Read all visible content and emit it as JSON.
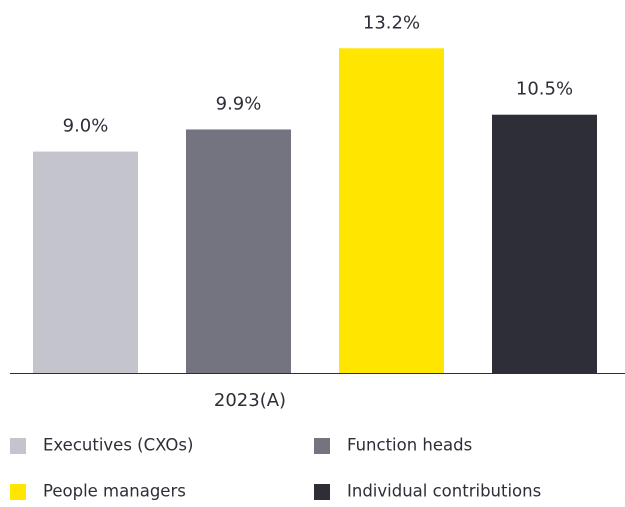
{
  "chart_data": {
    "type": "bar",
    "categories": [
      "2023(A)"
    ],
    "series": [
      {
        "name": "Executives (CXOs)",
        "color": "#c4c4cd",
        "values": [
          9.0
        ],
        "value_labels": [
          "9.0%"
        ]
      },
      {
        "name": "Function heads",
        "color": "#747480",
        "values": [
          9.9
        ],
        "value_labels": [
          "9.9%"
        ]
      },
      {
        "name": "People managers",
        "color": "#ffe600",
        "values": [
          13.2
        ],
        "value_labels": [
          "13.2%"
        ]
      },
      {
        "name": "Individual contributions",
        "color": "#2e2e38",
        "values": [
          10.5
        ],
        "value_labels": [
          "10.5%"
        ]
      }
    ],
    "ylim": [
      0,
      15
    ],
    "legend": "bottom"
  }
}
